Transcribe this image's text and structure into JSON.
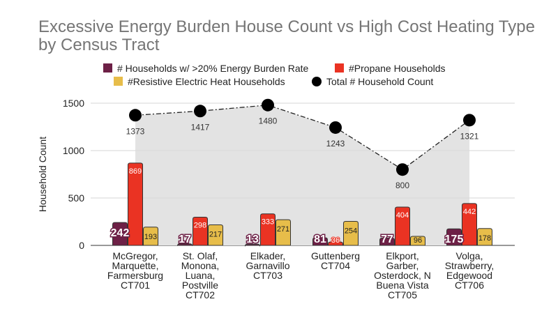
{
  "chart_data": {
    "type": "bar",
    "title": "Excessive Energy Burden House Count vs High Cost Heating Type by Census Tract",
    "ylabel": "Household Count",
    "xlabel": "",
    "ylim": [
      0,
      1500
    ],
    "yticks": [
      0,
      500,
      1000,
      1500
    ],
    "grid": true,
    "legend_position": "top",
    "categories": [
      [
        "McGregor,",
        "Marquette,",
        "Farmersburg",
        "CT701"
      ],
      [
        "St. Olaf,",
        "Monona,",
        "Luana,",
        "Postville",
        "CT702"
      ],
      [
        "Elkader,",
        "Garnavillo",
        "CT703"
      ],
      [
        "Guttenberg",
        "CT704"
      ],
      [
        "Elkport,",
        "Garber,",
        "Osterdock, N",
        "Buena Vista",
        "CT705"
      ],
      [
        "Volga,",
        "Strawberry,",
        "Edgewood",
        "CT706"
      ]
    ],
    "series": [
      {
        "name": "# Households w/  >20% Energy Burden Rate",
        "type": "bar",
        "color": "#6d2046",
        "values": [
          242,
          17,
          13,
          81,
          77,
          175
        ]
      },
      {
        "name": "#Propane Households",
        "type": "bar",
        "color": "#ea3323",
        "values": [
          869,
          298,
          333,
          36,
          404,
          442
        ]
      },
      {
        "name": "#Resistive Electric Heat Households",
        "type": "bar",
        "color": "#e7bd4a",
        "values": [
          193,
          217,
          271,
          254,
          96,
          178
        ]
      },
      {
        "name": "Total # Household Count",
        "type": "line-area",
        "color": "#000000",
        "area_color": "#e3e3e3",
        "values": [
          1373,
          1417,
          1480,
          1243,
          800,
          1321
        ]
      }
    ]
  }
}
